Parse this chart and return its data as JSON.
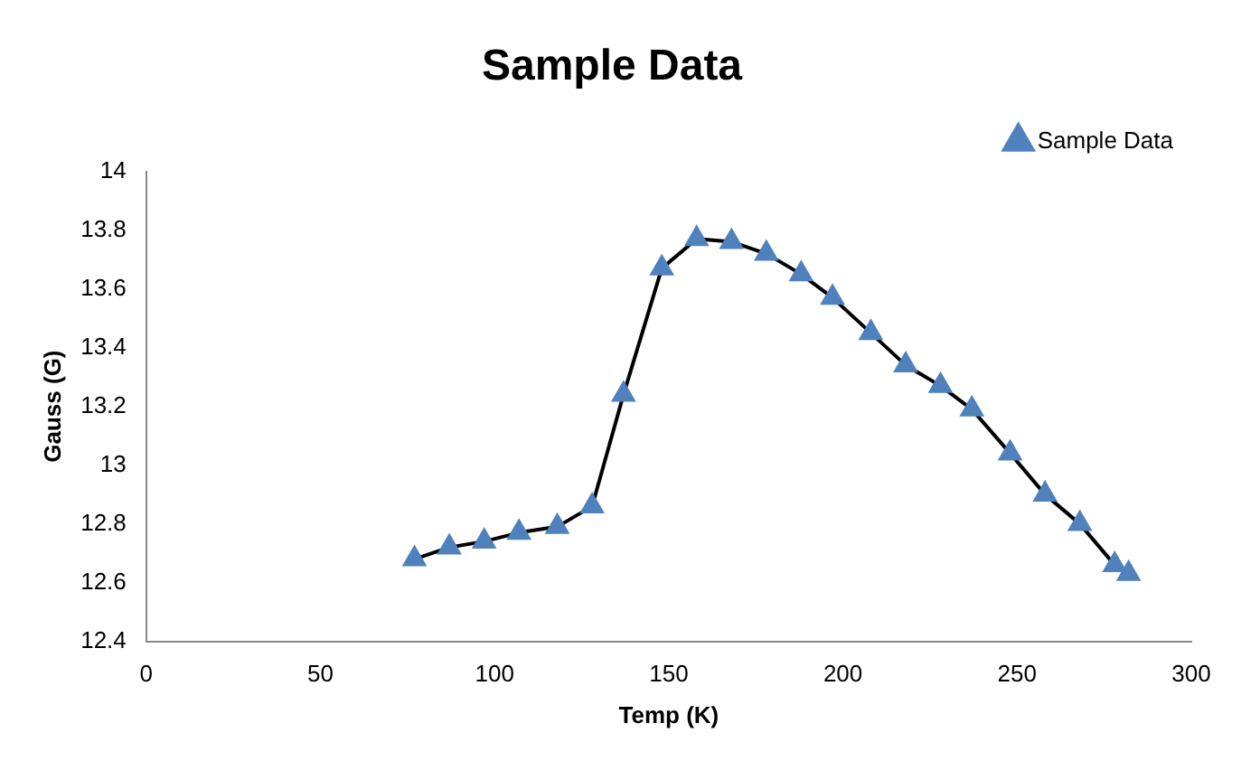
{
  "chart_data": {
    "type": "line",
    "title": "Sample Data",
    "xlabel": "Temp (K)",
    "ylabel": "Gauss (G)",
    "x": [
      77,
      87,
      97,
      107,
      118,
      128,
      137,
      148,
      158,
      168,
      178,
      188,
      197,
      208,
      218,
      228,
      237,
      248,
      258,
      268,
      278,
      282
    ],
    "series": [
      {
        "name": "Sample Data",
        "color": "#4f81bd",
        "values": [
          12.68,
          12.72,
          12.74,
          12.77,
          12.79,
          12.86,
          13.24,
          13.67,
          13.77,
          13.76,
          13.72,
          13.65,
          13.57,
          13.45,
          13.34,
          13.27,
          13.19,
          13.04,
          12.9,
          12.8,
          12.66,
          12.63
        ]
      }
    ],
    "xlim": [
      0,
      300
    ],
    "xticks": [
      0,
      50,
      100,
      150,
      200,
      250,
      300
    ],
    "ylim": [
      12.4,
      14
    ],
    "yticks": [
      12.4,
      12.6,
      12.8,
      13,
      13.2,
      13.4,
      13.6,
      13.8,
      14
    ],
    "grid": false,
    "legend": "top right",
    "marker": "triangle",
    "line_style": "solid"
  }
}
